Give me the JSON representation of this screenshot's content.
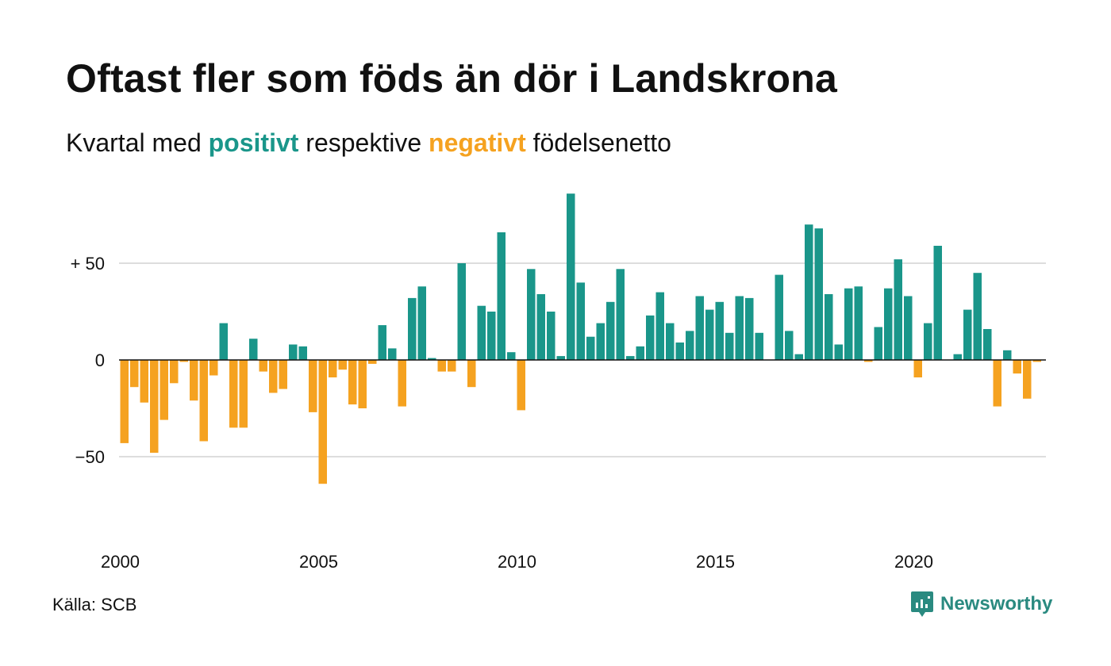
{
  "header": {
    "title": "Oftast fler som föds än dör i Landskrona",
    "subtitle_part1": "Kvartal med ",
    "subtitle_positive": "positivt",
    "subtitle_part2": " respektive ",
    "subtitle_negative": "negativt",
    "subtitle_part3": " födelsenetto"
  },
  "footer": {
    "source": "Källa: SCB",
    "brand": "Newsworthy"
  },
  "colors": {
    "positive": "#1a968a",
    "negative": "#f5a220",
    "grid": "#dddddd",
    "brand": "#2a8a80"
  },
  "chart_data": {
    "type": "bar",
    "x_start": "2000 Q1",
    "period": "quarter",
    "ylim": [
      -75,
      88
    ],
    "yticks": [
      {
        "value": 50,
        "label": "+ 50"
      },
      {
        "value": 0,
        "label": "0"
      },
      {
        "value": -50,
        "label": "−50"
      }
    ],
    "xticks": [
      {
        "year": 2000,
        "label": "2000"
      },
      {
        "year": 2005,
        "label": "2005"
      },
      {
        "year": 2010,
        "label": "2010"
      },
      {
        "year": 2015,
        "label": "2015"
      },
      {
        "year": 2020,
        "label": "2020"
      }
    ],
    "grid": true,
    "values": [
      -43,
      -14,
      -22,
      -48,
      -31,
      -12,
      -1,
      -21,
      -42,
      -8,
      19,
      -35,
      -35,
      11,
      -6,
      -17,
      -15,
      8,
      7,
      -27,
      -64,
      -9,
      -5,
      -23,
      -25,
      -2,
      18,
      6,
      -24,
      32,
      38,
      1,
      -6,
      -6,
      50,
      -14,
      28,
      25,
      66,
      4,
      -26,
      47,
      34,
      25,
      2,
      86,
      40,
      12,
      19,
      30,
      47,
      2,
      7,
      23,
      35,
      19,
      9,
      15,
      33,
      26,
      30,
      14,
      33,
      32,
      14,
      0,
      44,
      15,
      3,
      70,
      68,
      34,
      8,
      37,
      38,
      -1,
      17,
      37,
      52,
      33,
      -9,
      19,
      59,
      0,
      3,
      26,
      45,
      16,
      -24,
      5,
      -7,
      -20,
      -1
    ]
  }
}
